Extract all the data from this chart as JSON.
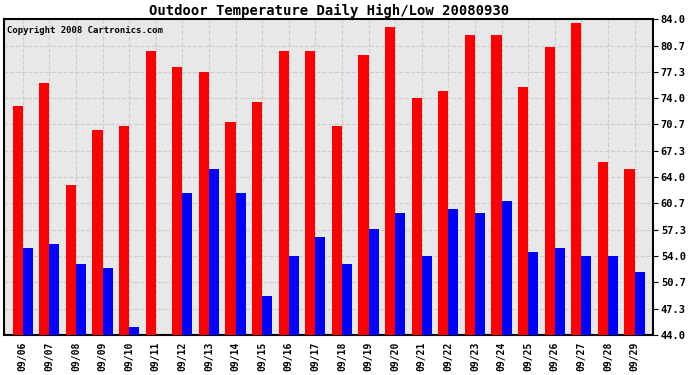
{
  "title": "Outdoor Temperature Daily High/Low 20080930",
  "copyright": "Copyright 2008 Cartronics.com",
  "categories": [
    "09/06",
    "09/07",
    "09/08",
    "09/09",
    "09/10",
    "09/11",
    "09/12",
    "09/13",
    "09/14",
    "09/15",
    "09/16",
    "09/17",
    "09/18",
    "09/19",
    "09/20",
    "09/21",
    "09/22",
    "09/23",
    "09/24",
    "09/25",
    "09/26",
    "09/27",
    "09/28",
    "09/29"
  ],
  "highs": [
    73.0,
    76.0,
    63.0,
    70.0,
    70.5,
    80.0,
    78.0,
    77.3,
    71.0,
    73.5,
    80.0,
    80.0,
    70.5,
    79.5,
    83.0,
    74.0,
    75.0,
    82.0,
    82.0,
    75.5,
    80.5,
    83.5,
    66.0,
    65.0
  ],
  "lows": [
    55.0,
    55.5,
    53.0,
    52.5,
    45.0,
    44.0,
    62.0,
    65.0,
    62.0,
    49.0,
    54.0,
    56.5,
    53.0,
    57.5,
    59.5,
    54.0,
    60.0,
    59.5,
    61.0,
    54.5,
    55.0,
    54.0,
    54.0,
    52.0
  ],
  "high_color": "#ff0000",
  "low_color": "#0000ff",
  "fig_bg_color": "#ffffff",
  "plot_bg_color": "#e8e8e8",
  "grid_color": "#cccccc",
  "ylim": [
    44.0,
    84.0
  ],
  "yticks": [
    44.0,
    47.3,
    50.7,
    54.0,
    57.3,
    60.7,
    64.0,
    67.3,
    70.7,
    74.0,
    77.3,
    80.7,
    84.0
  ],
  "bar_width": 0.38,
  "figsize": [
    6.9,
    3.75
  ],
  "dpi": 100
}
